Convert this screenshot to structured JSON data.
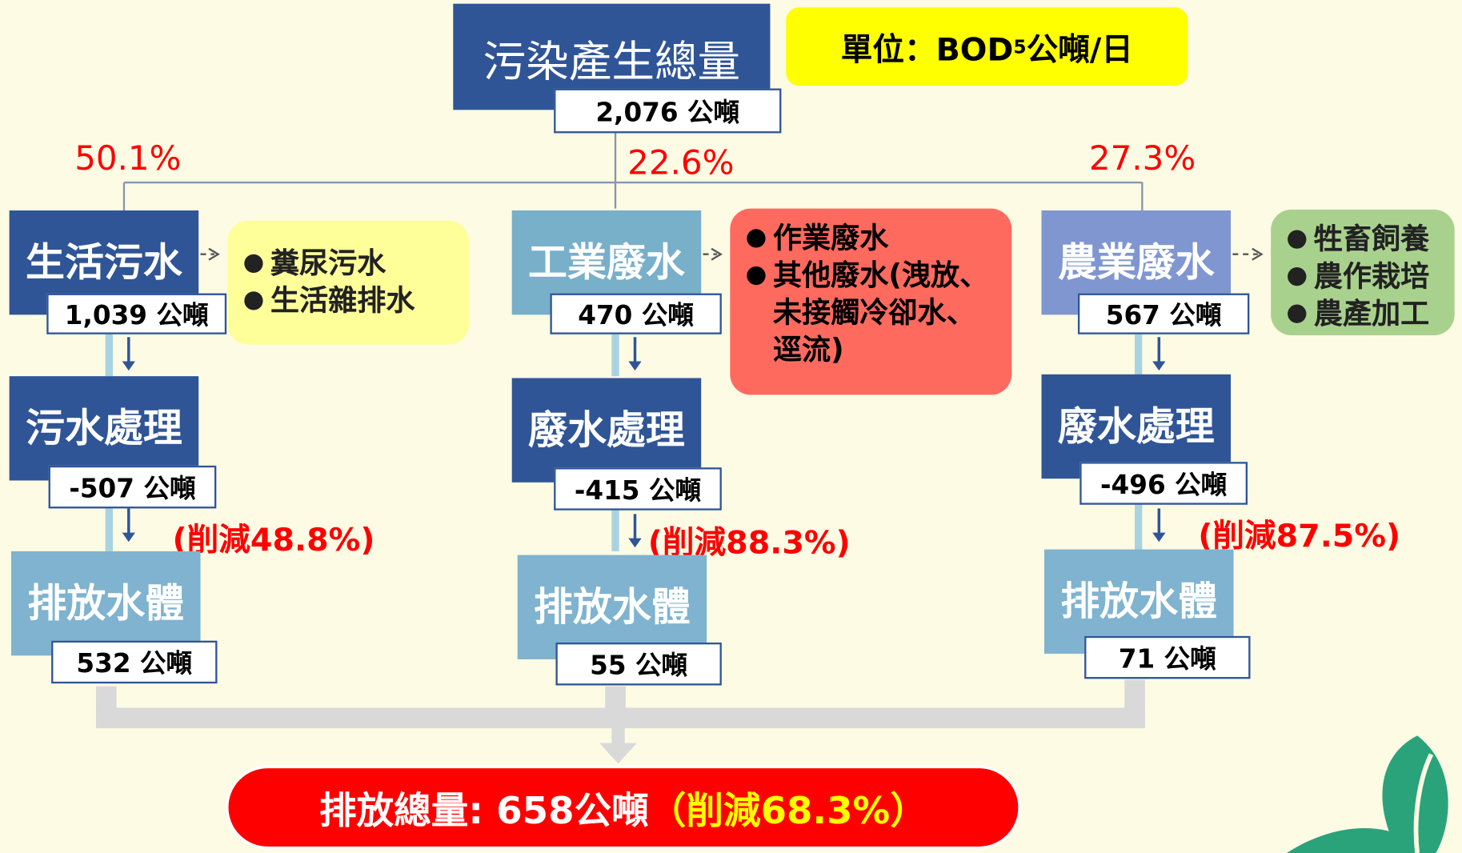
{
  "title": "污染產生總量",
  "total": "2,076 公噸",
  "unit": {
    "prefix": "單位：BOD",
    "sub": "5",
    "suffix": "公噸/日"
  },
  "branches": [
    {
      "share": "50.1%",
      "name": "生活污水",
      "amount": "1,039 公噸",
      "details": [
        "糞尿污水",
        "生活雜排水"
      ],
      "treatment": "污水處理",
      "treatment_amount": "-507 公噸",
      "reduction": "(削減48.8%)",
      "discharge": "排放水體",
      "discharge_amount": "532 公噸"
    },
    {
      "share": "22.6%",
      "name": "工業廢水",
      "amount": "470 公噸",
      "details": [
        "作業廢水",
        "其他廢水(洩放、未接觸冷卻水、逕流)"
      ],
      "treatment": "廢水處理",
      "treatment_amount": "-415 公噸",
      "reduction": "(削減88.3%)",
      "discharge": "排放水體",
      "discharge_amount": "55 公噸"
    },
    {
      "share": "27.3%",
      "name": "農業廢水",
      "amount": "567 公噸",
      "details": [
        "牲畜飼養",
        "農作栽培",
        "農產加工"
      ],
      "treatment": "廢水處理",
      "treatment_amount": "-496 公噸",
      "reduction": "(削減87.5%)",
      "discharge": "排放水體",
      "discharge_amount": "71 公噸"
    }
  ],
  "summary": {
    "total": "排放總量: 658公噸",
    "reduction": "（削減68.3%）"
  }
}
